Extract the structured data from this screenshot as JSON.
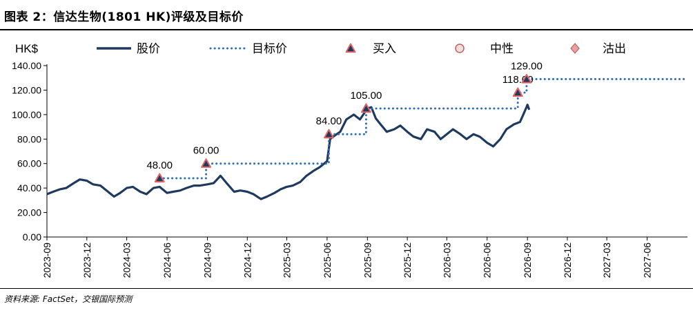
{
  "header": {
    "title": "图表 2：信达生物(1801 HK)评级及目标价"
  },
  "footer": {
    "source": "资料来源: FactSet，交银国际预测"
  },
  "chart_data": {
    "type": "line",
    "ylabel": "HK$",
    "ylim": [
      0,
      140
    ],
    "yticks": [
      0,
      20,
      40,
      60,
      80,
      100,
      120,
      140
    ],
    "ytick_labels": [
      "0.00",
      "20.00",
      "40.00",
      "60.00",
      "80.00",
      "100.00",
      "120.00",
      "140.00"
    ],
    "xlim": [
      "2023-09",
      "2027-09"
    ],
    "xtick_labels": [
      "2023-09",
      "2023-12",
      "2024-03",
      "2024-06",
      "2024-09",
      "2024-12",
      "2025-03",
      "2025-06",
      "2025-09",
      "2025-12",
      "2026-03",
      "2026-06",
      "2026-09",
      "2026-12",
      "2027-03",
      "2027-06"
    ],
    "legend": {
      "placement": "top",
      "items": [
        {
          "name": "股价",
          "style": "solid-line",
          "color": "#1f3a5f"
        },
        {
          "name": "目标价",
          "style": "dotted-line",
          "color": "#2e6fb5"
        },
        {
          "name": "买入",
          "style": "triangle",
          "color": "#e06666"
        },
        {
          "name": "中性",
          "style": "circle",
          "color": "#d9a0a0"
        },
        {
          "name": "沽出",
          "style": "diamond",
          "color": "#d98080"
        }
      ]
    },
    "series": [
      {
        "name": "股价",
        "style": "solid",
        "color": "#1f3a5f",
        "points": [
          [
            "2023-09-01",
            35
          ],
          [
            "2023-09-15",
            37
          ],
          [
            "2023-10-01",
            39
          ],
          [
            "2023-10-15",
            40
          ],
          [
            "2023-11-01",
            44
          ],
          [
            "2023-11-15",
            47
          ],
          [
            "2023-12-01",
            46
          ],
          [
            "2023-12-15",
            43
          ],
          [
            "2024-01-01",
            42
          ],
          [
            "2024-01-15",
            38
          ],
          [
            "2024-02-01",
            33
          ],
          [
            "2024-02-15",
            36
          ],
          [
            "2024-03-01",
            40
          ],
          [
            "2024-03-15",
            41
          ],
          [
            "2024-04-01",
            37
          ],
          [
            "2024-04-15",
            35
          ],
          [
            "2024-05-01",
            40
          ],
          [
            "2024-05-15",
            41
          ],
          [
            "2024-06-01",
            36
          ],
          [
            "2024-06-15",
            37
          ],
          [
            "2024-07-01",
            38
          ],
          [
            "2024-07-15",
            40
          ],
          [
            "2024-08-01",
            42
          ],
          [
            "2024-08-15",
            42
          ],
          [
            "2024-09-01",
            43
          ],
          [
            "2024-09-15",
            44
          ],
          [
            "2024-10-01",
            50
          ],
          [
            "2024-10-15",
            44
          ],
          [
            "2024-11-01",
            37
          ],
          [
            "2024-11-15",
            38
          ],
          [
            "2024-12-01",
            37
          ],
          [
            "2024-12-15",
            35
          ],
          [
            "2025-01-01",
            31
          ],
          [
            "2025-01-15",
            33
          ],
          [
            "2025-02-01",
            36
          ],
          [
            "2025-02-15",
            39
          ],
          [
            "2025-03-01",
            41
          ],
          [
            "2025-03-15",
            42
          ],
          [
            "2025-04-01",
            45
          ],
          [
            "2025-04-15",
            50
          ],
          [
            "2025-05-01",
            54
          ],
          [
            "2025-05-15",
            57
          ],
          [
            "2025-06-01",
            62
          ],
          [
            "2025-06-08",
            80
          ],
          [
            "2025-06-15",
            82
          ],
          [
            "2025-07-01",
            86
          ],
          [
            "2025-07-15",
            96
          ],
          [
            "2025-08-01",
            100
          ],
          [
            "2025-08-15",
            96
          ],
          [
            "2025-09-01",
            105
          ],
          [
            "2025-09-10",
            106
          ],
          [
            "2025-09-20",
            97
          ],
          [
            "2025-10-01",
            92
          ],
          [
            "2025-10-15",
            86
          ],
          [
            "2025-11-01",
            88
          ],
          [
            "2025-11-15",
            91
          ],
          [
            "2025-12-01",
            86
          ],
          [
            "2025-12-15",
            82
          ],
          [
            "2026-01-01",
            80
          ],
          [
            "2026-01-15",
            88
          ],
          [
            "2026-02-01",
            86
          ],
          [
            "2026-02-15",
            80
          ],
          [
            "2026-03-01",
            84
          ],
          [
            "2026-03-15",
            88
          ],
          [
            "2026-04-01",
            84
          ],
          [
            "2026-04-15",
            80
          ],
          [
            "2026-05-01",
            84
          ],
          [
            "2026-05-15",
            82
          ],
          [
            "2026-06-01",
            77
          ],
          [
            "2026-06-15",
            74
          ],
          [
            "2026-07-01",
            80
          ],
          [
            "2026-07-15",
            88
          ],
          [
            "2026-08-01",
            92
          ],
          [
            "2026-08-15",
            94
          ],
          [
            "2026-08-25",
            102
          ],
          [
            "2026-09-01",
            108
          ],
          [
            "2026-09-05",
            104
          ]
        ]
      },
      {
        "name": "目标价",
        "style": "dotted",
        "color": "#2e6fb5",
        "points": [
          [
            "2024-05-15",
            48
          ],
          [
            "2024-08-29",
            48
          ],
          [
            "2024-08-29",
            60
          ],
          [
            "2025-06-05",
            60
          ],
          [
            "2025-06-05",
            84
          ],
          [
            "2025-08-29",
            84
          ],
          [
            "2025-08-29",
            105
          ],
          [
            "2026-08-10",
            105
          ],
          [
            "2026-08-10",
            118
          ],
          [
            "2026-08-30",
            118
          ],
          [
            "2026-08-30",
            129
          ],
          [
            "2027-09-01",
            129
          ]
        ]
      }
    ],
    "ratings": [
      {
        "date": "2024-05-15",
        "rating": "买入",
        "target": 48,
        "label": "48.00"
      },
      {
        "date": "2024-08-29",
        "rating": "买入",
        "target": 60,
        "label": "60.00"
      },
      {
        "date": "2025-06-05",
        "rating": "买入",
        "target": 84,
        "label": "84.00"
      },
      {
        "date": "2025-08-29",
        "rating": "买入",
        "target": 105,
        "label": "105.00"
      },
      {
        "date": "2026-08-10",
        "rating": "买入",
        "target": 118,
        "label": "118.00"
      },
      {
        "date": "2026-08-30",
        "rating": "买入",
        "target": 129,
        "label": "129.00"
      }
    ]
  }
}
